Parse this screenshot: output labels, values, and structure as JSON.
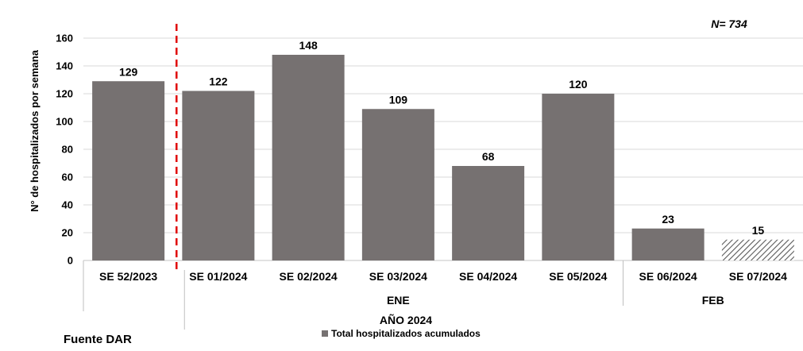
{
  "chart_data": {
    "type": "bar",
    "ylabel": "N° de hospitalizados por semana",
    "ylim": [
      0,
      160
    ],
    "yticks": [
      0,
      20,
      40,
      60,
      80,
      100,
      120,
      140,
      160
    ],
    "grid": true,
    "categories": [
      "SE 52/2023",
      "SE 01/2024",
      "SE 02/2024",
      "SE 03/2024",
      "SE 04/2024",
      "SE 05/2024",
      "SE 06/2024",
      "SE 07/2024"
    ],
    "series": [
      {
        "name": "Total hospitalizados acumulados",
        "values": [
          129,
          122,
          148,
          109,
          68,
          120,
          23,
          15
        ],
        "hatched": [
          false,
          false,
          false,
          false,
          false,
          false,
          false,
          true
        ]
      }
    ],
    "month_groups": [
      {
        "label": "ENE",
        "from": 1,
        "to": 5
      },
      {
        "label": "FEB",
        "from": 6,
        "to": 7
      }
    ],
    "year_label": "AÑO 2024",
    "annotation": "N= 734",
    "source": "Fuente DAR",
    "legend_position": "bottom",
    "colors": {
      "bar": "#767171",
      "hatch": "#595959",
      "divider": "#e00000",
      "grid": "#d9d9d9"
    }
  }
}
